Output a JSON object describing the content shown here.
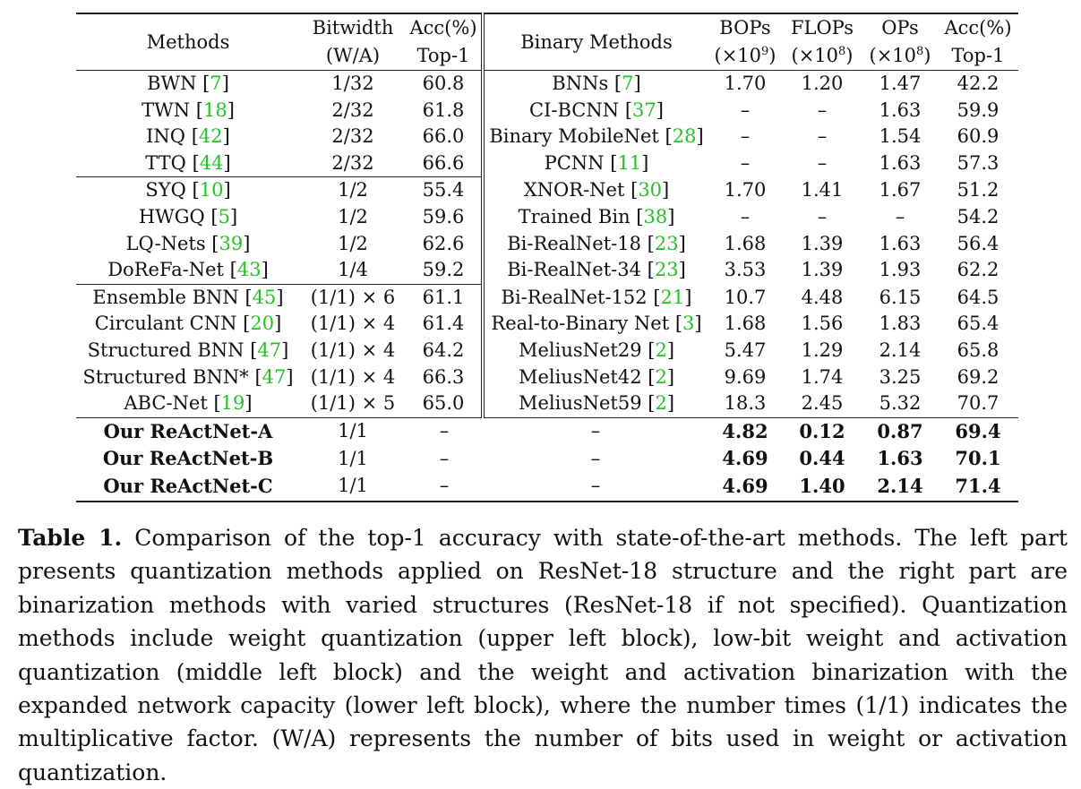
{
  "header": {
    "methods": "Methods",
    "bitwidth_1": "Bitwidth",
    "bitwidth_2": "(W/A)",
    "acc_1": "Acc(%)",
    "acc_2": "Top-1",
    "binary_methods": "Binary Methods",
    "bops_1": "BOPs",
    "bops_2a": "(×10",
    "bops_exp": "9",
    "bops_2b": ")",
    "flops_1": "FLOPs",
    "flops_2a": "(×10",
    "flops_exp": "8",
    "flops_2b": ")",
    "ops_1": "OPs",
    "ops_2a": "(×10",
    "ops_exp": "8",
    "ops_2b": ")",
    "racc_1": "Acc(%)",
    "racc_2": "Top-1"
  },
  "rows": [
    {
      "lname": "BWN",
      "lcite": "7",
      "bw": "1/32",
      "lacc": "60.8",
      "rname": "BNNs",
      "rcite": "7",
      "bops": "1.70",
      "flops": "1.20",
      "ops": "1.47",
      "racc": "42.2"
    },
    {
      "lname": "TWN",
      "lcite": "18",
      "bw": "2/32",
      "lacc": "61.8",
      "rname": "CI-BCNN",
      "rcite": "37",
      "bops": "–",
      "flops": "–",
      "ops": "1.63",
      "racc": "59.9"
    },
    {
      "lname": "INQ",
      "lcite": "42",
      "bw": "2/32",
      "lacc": "66.0",
      "rname": "Binary MobileNet",
      "rcite": "28",
      "bops": "–",
      "flops": "–",
      "ops": "1.54",
      "racc": "60.9"
    },
    {
      "lname": "TTQ",
      "lcite": "44",
      "bw": "2/32",
      "lacc": "66.6",
      "rname": "PCNN",
      "rcite": "11",
      "bops": "–",
      "flops": "–",
      "ops": "1.63",
      "racc": "57.3"
    },
    {
      "lname": "SYQ",
      "lcite": "10",
      "bw": "1/2",
      "lacc": "55.4",
      "rname": "XNOR-Net",
      "rcite": "30",
      "bops": "1.70",
      "flops": "1.41",
      "ops": "1.67",
      "racc": "51.2"
    },
    {
      "lname": "HWGQ",
      "lcite": "5",
      "bw": "1/2",
      "lacc": "59.6",
      "rname": "Trained Bin",
      "rcite": "38",
      "bops": "–",
      "flops": "–",
      "ops": "–",
      "racc": "54.2"
    },
    {
      "lname": "LQ-Nets",
      "lcite": "39",
      "bw": "1/2",
      "lacc": "62.6",
      "rname": "Bi-RealNet-18",
      "rcite": "23",
      "bops": "1.68",
      "flops": "1.39",
      "ops": "1.63",
      "racc": "56.4"
    },
    {
      "lname": "DoReFa-Net",
      "lcite": "43",
      "bw": "1/4",
      "lacc": "59.2",
      "rname": "Bi-RealNet-34",
      "rcite": "23",
      "bops": "3.53",
      "flops": "1.39",
      "ops": "1.93",
      "racc": "62.2"
    },
    {
      "lname": "Ensemble BNN",
      "lcite": "45",
      "bw": "(1/1) × 6",
      "lacc": "61.1",
      "rname": "Bi-RealNet-152",
      "rcite": "21",
      "bops": "10.7",
      "flops": "4.48",
      "ops": "6.15",
      "racc": "64.5"
    },
    {
      "lname": "Circulant CNN",
      "lcite": "20",
      "bw": "(1/1) × 4",
      "lacc": "61.4",
      "rname": "Real-to-Binary Net",
      "rcite": "3",
      "bops": "1.68",
      "flops": "1.56",
      "ops": "1.83",
      "racc": "65.4"
    },
    {
      "lname": "Structured BNN",
      "lcite": "47",
      "bw": "(1/1) × 4",
      "lacc": "64.2",
      "rname": "MeliusNet29",
      "rcite": "2",
      "bops": "5.47",
      "flops": "1.29",
      "ops": "2.14",
      "racc": "65.8"
    },
    {
      "lname": "Structured BNN*",
      "lcite": "47",
      "bw": "(1/1) × 4",
      "lacc": "66.3",
      "rname": "MeliusNet42",
      "rcite": "2",
      "bops": "9.69",
      "flops": "1.74",
      "ops": "3.25",
      "racc": "69.2"
    },
    {
      "lname": "ABC-Net",
      "lcite": "19",
      "bw": "(1/1) × 5",
      "lacc": "65.0",
      "rname": "MeliusNet59",
      "rcite": "2",
      "bops": "18.3",
      "flops": "2.45",
      "ops": "5.32",
      "racc": "70.7"
    }
  ],
  "ours": [
    {
      "name": "Our ReActNet-A",
      "bw": "1/1",
      "lacc": "–",
      "rname": "–",
      "bops": "4.82",
      "flops": "0.12",
      "ops": "0.87",
      "racc": "69.4"
    },
    {
      "name": "Our ReActNet-B",
      "bw": "1/1",
      "lacc": "–",
      "rname": "–",
      "bops": "4.69",
      "flops": "0.44",
      "ops": "1.63",
      "racc": "70.1"
    },
    {
      "name": "Our ReActNet-C",
      "bw": "1/1",
      "lacc": "–",
      "rname": "–",
      "bops": "4.69",
      "flops": "1.40",
      "ops": "2.14",
      "racc": "71.4"
    }
  ],
  "caption": {
    "label": "Table 1.",
    "text": "Comparison of the top-1 accuracy with state-of-the-art methods. The left part presents quantization methods applied on ResNet-18 structure and the right part are binarization methods with varied structures (ResNet-18 if not specified). Quantization methods include weight quantization (upper left block), low-bit weight and activation quantization (middle left block) and the weight and activation binarization with the expanded network capacity (lower left block), where the number times (1/1) indicates the multiplicative factor. (W/A) represents the number of bits used in weight or activation quantization."
  }
}
